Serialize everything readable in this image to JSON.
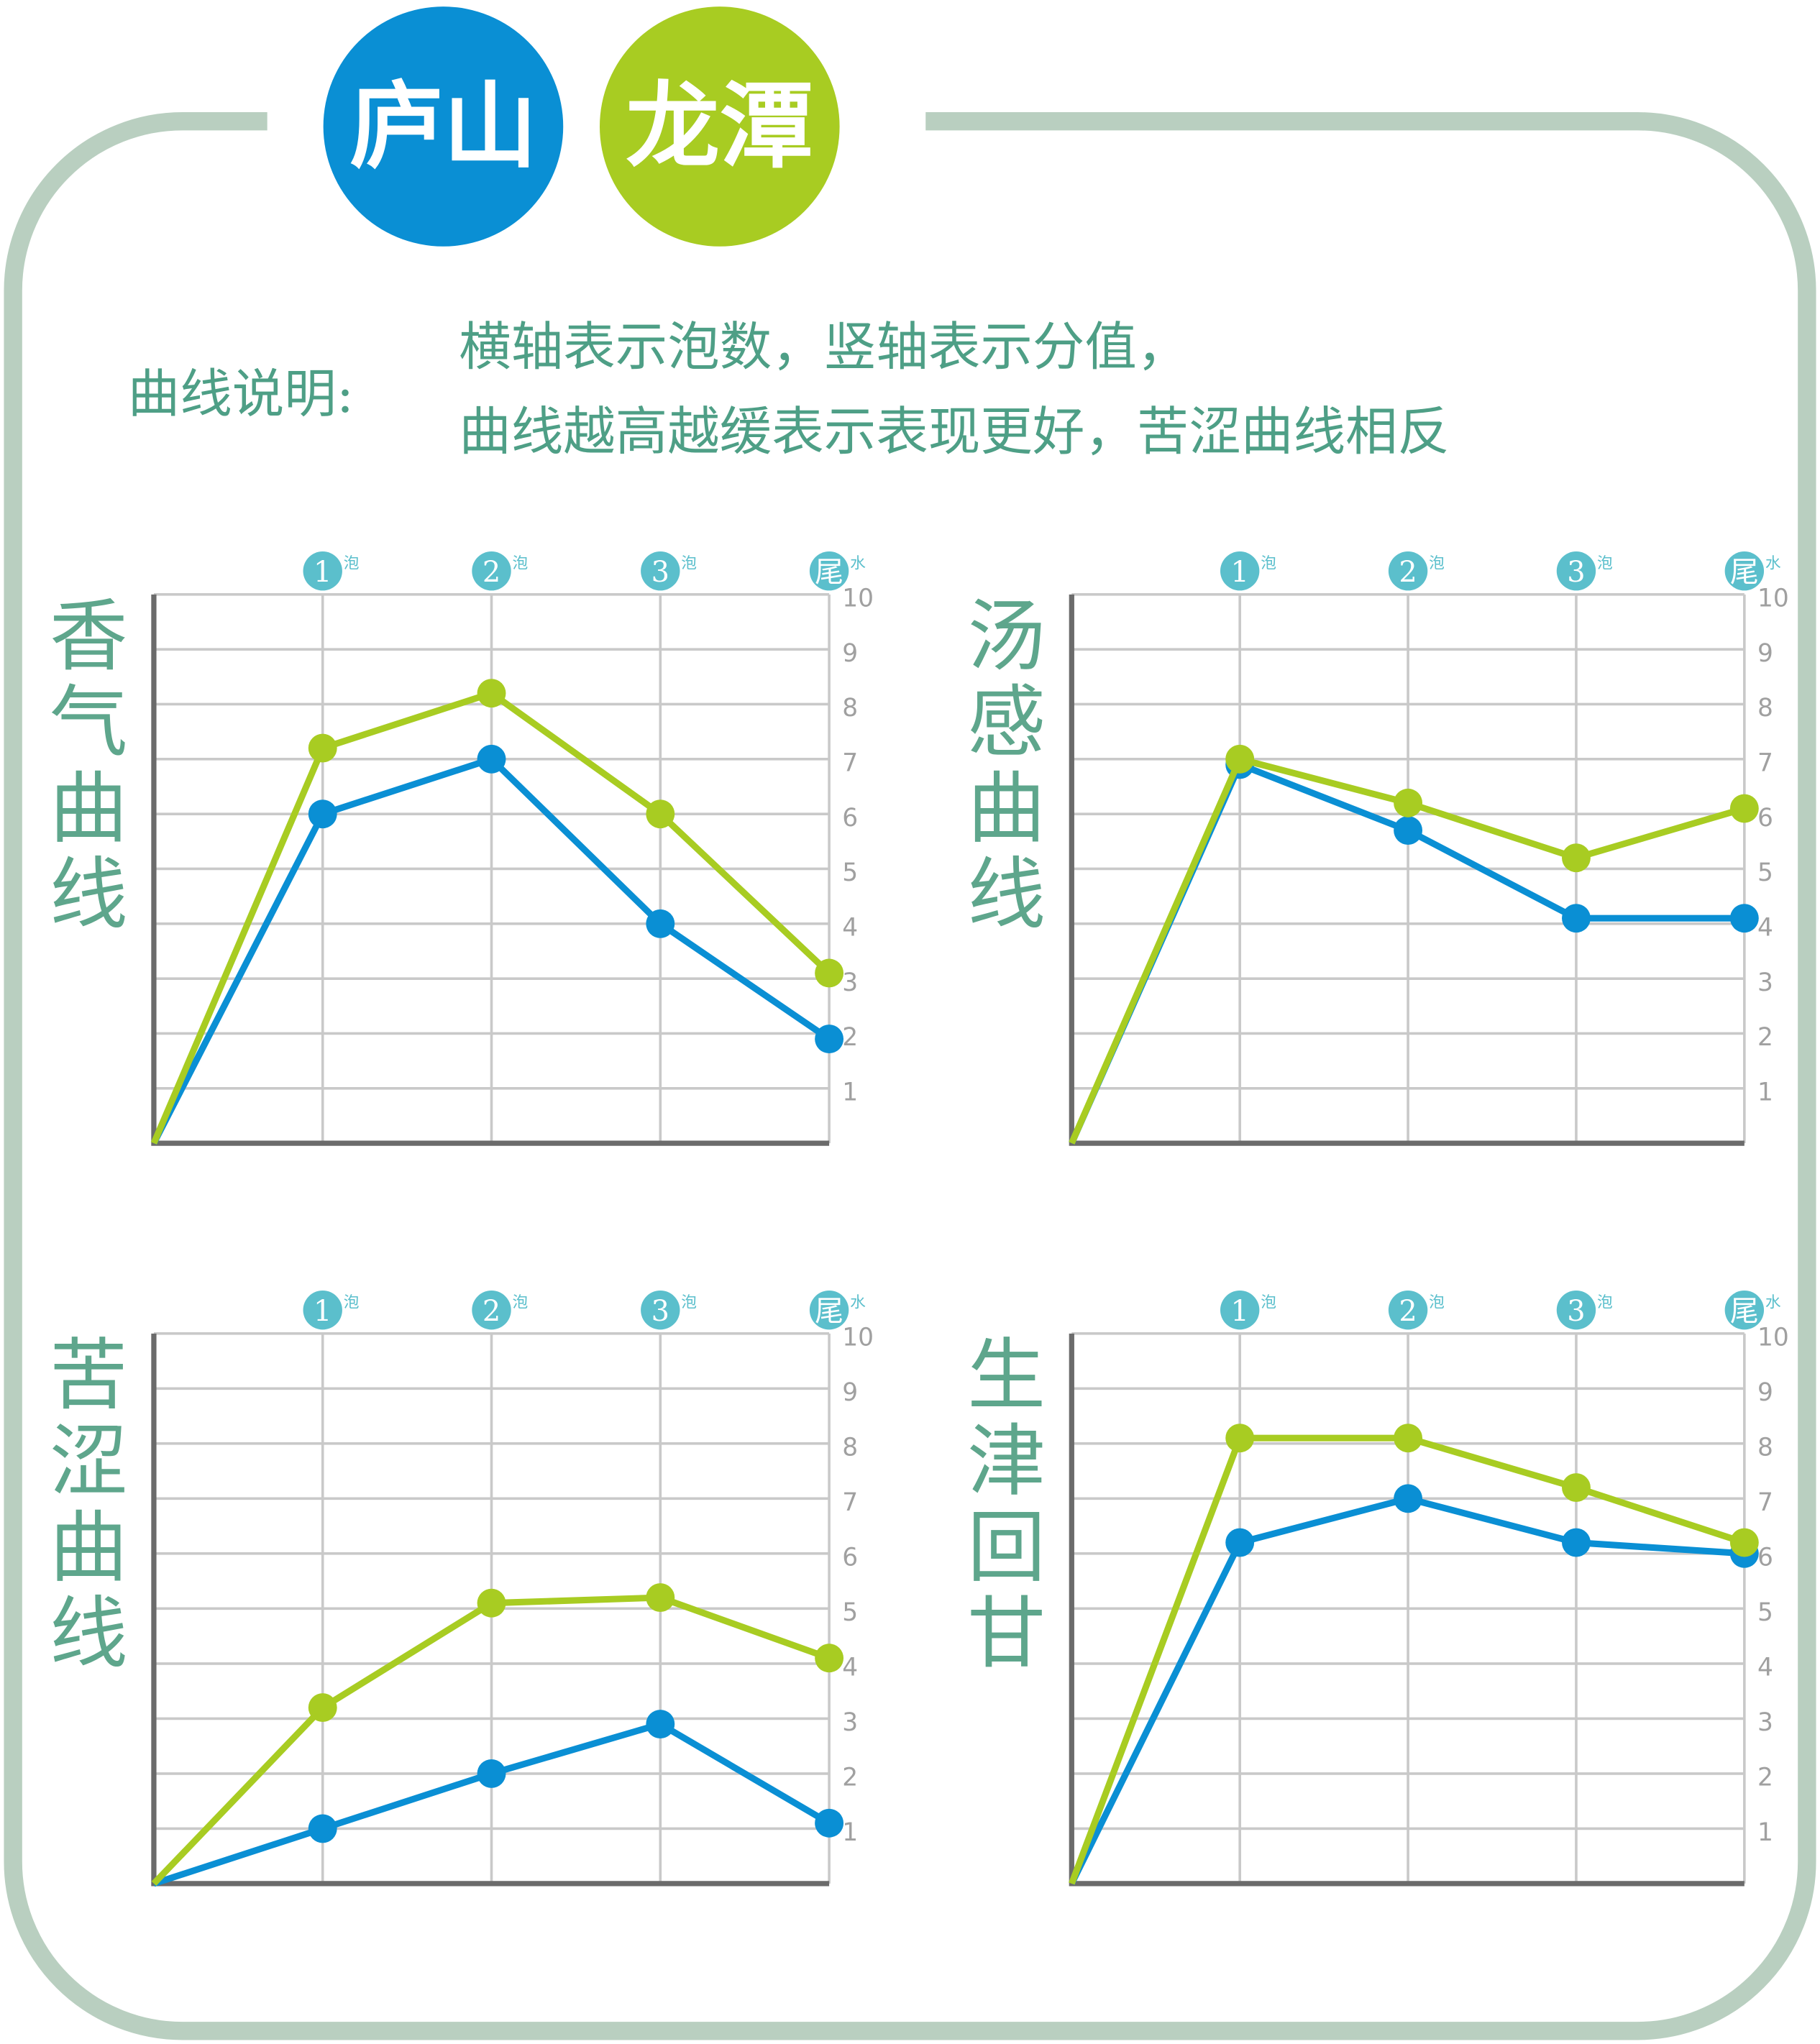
{
  "header": {
    "legend": [
      {
        "label": "庐山",
        "color": "#0a8fd4"
      },
      {
        "label": "龙潭",
        "color": "#a8cc22"
      }
    ],
    "note_label": "曲线说明:",
    "note_lines": [
      "横轴表示泡数，竖轴表示分值，",
      "曲线越高越缓表示表现更好，苦涩曲线相反"
    ]
  },
  "chart_data": [
    {
      "type": "line",
      "title": "香气曲线",
      "categories": [
        null,
        "1",
        "2",
        "3",
        "尾"
      ],
      "category_units": [
        null,
        "泡",
        "泡",
        "泡",
        "水"
      ],
      "series": [
        {
          "color": "#0a8fd4",
          "values": [
            0,
            6,
            7,
            4,
            1.9
          ]
        },
        {
          "color": "#a8cc22",
          "values": [
            0,
            7.2,
            8.2,
            6,
            3.1
          ]
        }
      ],
      "ylim": [
        0,
        10
      ],
      "yticks": [
        1,
        2,
        3,
        4,
        5,
        6,
        7,
        8,
        9,
        10
      ],
      "grid": true
    },
    {
      "type": "line",
      "title": "汤感曲线",
      "categories": [
        null,
        "1",
        "2",
        "3",
        "尾"
      ],
      "category_units": [
        null,
        "泡",
        "泡",
        "泡",
        "水"
      ],
      "series": [
        {
          "color": "#0a8fd4",
          "values": [
            0,
            6.9,
            5.7,
            4.1,
            4.1
          ]
        },
        {
          "color": "#a8cc22",
          "values": [
            0,
            7,
            6.2,
            5.2,
            6.1
          ]
        }
      ],
      "ylim": [
        0,
        10
      ],
      "yticks": [
        1,
        2,
        3,
        4,
        5,
        6,
        7,
        8,
        9,
        10
      ],
      "grid": true
    },
    {
      "type": "line",
      "title": "苦涩曲线",
      "categories": [
        null,
        "1",
        "2",
        "3",
        "尾"
      ],
      "category_units": [
        null,
        "泡",
        "泡",
        "泡",
        "水"
      ],
      "series": [
        {
          "color": "#0a8fd4",
          "values": [
            0,
            1,
            2,
            2.9,
            1.1
          ]
        },
        {
          "color": "#a8cc22",
          "values": [
            0,
            3.2,
            5.1,
            5.2,
            4.1
          ]
        }
      ],
      "ylim": [
        0,
        10
      ],
      "yticks": [
        1,
        2,
        3,
        4,
        5,
        6,
        7,
        8,
        9,
        10
      ],
      "grid": true
    },
    {
      "type": "line",
      "title": "生津回甘",
      "categories": [
        null,
        "1",
        "2",
        "3",
        "尾"
      ],
      "category_units": [
        null,
        "泡",
        "泡",
        "泡",
        "水"
      ],
      "series": [
        {
          "color": "#0a8fd4",
          "values": [
            0,
            6.2,
            7,
            6.2,
            6
          ]
        },
        {
          "color": "#a8cc22",
          "values": [
            0,
            8.1,
            8.1,
            7.2,
            6.2
          ]
        }
      ],
      "ylim": [
        0,
        10
      ],
      "yticks": [
        1,
        2,
        3,
        4,
        5,
        6,
        7,
        8,
        9,
        10
      ],
      "grid": true
    }
  ]
}
